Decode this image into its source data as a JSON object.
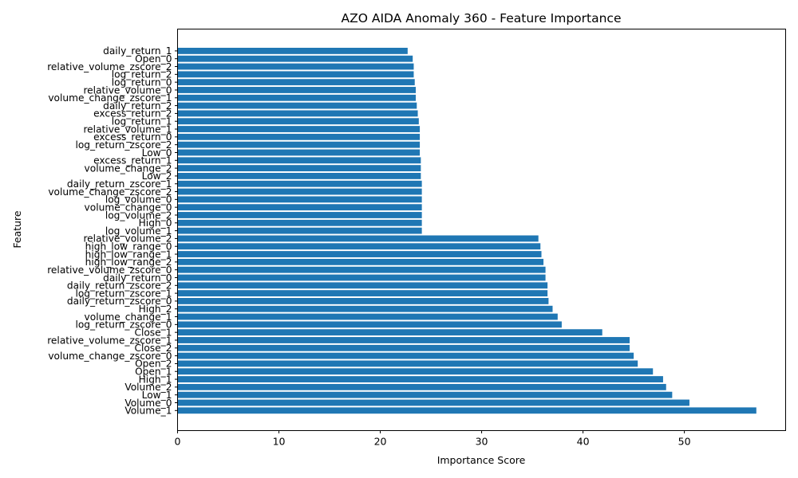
{
  "chart_data": {
    "type": "bar",
    "orientation": "horizontal",
    "title": "AZO AIDA Anomaly 360 - Feature Importance",
    "xlabel": "Importance Score",
    "ylabel": "Feature",
    "xlim": [
      0,
      60
    ],
    "xticks": [
      0,
      10,
      20,
      30,
      40,
      50
    ],
    "grid": false,
    "bar_color": "#1f77b4",
    "categories": [
      "Volume_1",
      "Volume_0",
      "Low_1",
      "Volume_2",
      "High_1",
      "Open_1",
      "Open_2",
      "volume_change_zscore_0",
      "Close_2",
      "relative_volume_zscore_1",
      "Close_1",
      "log_return_zscore_0",
      "volume_change_1",
      "High_2",
      "daily_return_zscore_0",
      "log_return_zscore_1",
      "daily_return_zscore_2",
      "daily_return_0",
      "relative_volume_zscore_0",
      "high_low_range_2",
      "high_low_range_1",
      "high_low_range_0",
      "relative_volume_2",
      "log_volume_1",
      "High_0",
      "log_volume_2",
      "volume_change_0",
      "log_volume_0",
      "volume_change_zscore_2",
      "daily_return_zscore_1",
      "Low_2",
      "volume_change_2",
      "excess_return_1",
      "Low_0",
      "log_return_zscore_2",
      "excess_return_0",
      "relative_volume_1",
      "log_return_1",
      "excess_return_2",
      "daily_return_2",
      "volume_change_zscore_1",
      "relative_volume_0",
      "log_return_0",
      "log_return_2",
      "relative_volume_zscore_2",
      "Open_0",
      "daily_return_1"
    ],
    "values": [
      57.1,
      50.5,
      48.8,
      48.2,
      47.9,
      46.9,
      45.4,
      45.0,
      44.6,
      44.6,
      41.9,
      37.9,
      37.5,
      37.0,
      36.6,
      36.5,
      36.5,
      36.3,
      36.3,
      36.1,
      35.9,
      35.8,
      35.6,
      24.1,
      24.1,
      24.1,
      24.1,
      24.1,
      24.1,
      24.1,
      24.0,
      24.0,
      24.0,
      23.9,
      23.9,
      23.9,
      23.9,
      23.8,
      23.7,
      23.6,
      23.5,
      23.5,
      23.4,
      23.3,
      23.3,
      23.2,
      22.7
    ]
  }
}
